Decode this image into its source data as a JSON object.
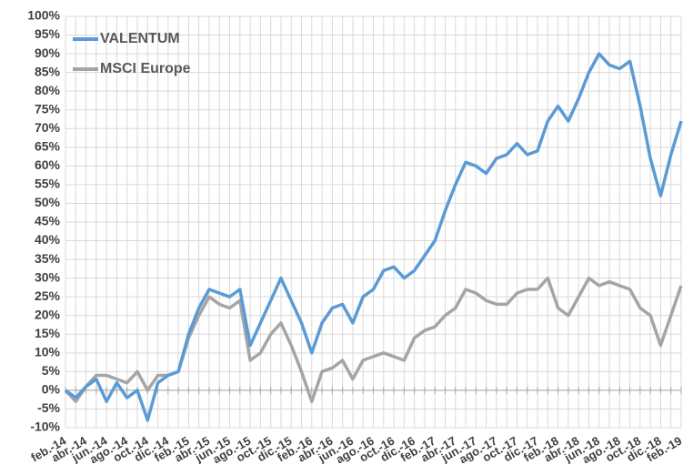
{
  "chart_data": {
    "type": "line",
    "categories": [
      "feb.-14",
      null,
      "abr.-14",
      null,
      "jun.-14",
      null,
      "ago.-14",
      null,
      "oct.-14",
      null,
      "dic.-14",
      null,
      "feb.-15",
      null,
      "abr.-15",
      null,
      "jun.-15",
      null,
      "ago.-15",
      null,
      "oct.-15",
      null,
      "dic.-15",
      null,
      "feb.-16",
      null,
      "abr.-16",
      null,
      "jun.-16",
      null,
      "ago.-16",
      null,
      "oct.-16",
      null,
      "dic.-16",
      null,
      "feb.-17",
      null,
      "abr.-17",
      null,
      "jun.-17",
      null,
      "ago.-17",
      null,
      "oct.-17",
      null,
      "dic.-17",
      null,
      "feb.-18",
      null,
      "abr.-18",
      null,
      "jun.-18",
      null,
      "ago.-18",
      null,
      "oct.-18",
      null,
      "dic.-18",
      null,
      "feb.-19"
    ],
    "series": [
      {
        "name": "VALENTUM",
        "color": "#5b9bd5",
        "values": [
          0,
          -2,
          1,
          3,
          -3,
          2,
          -2,
          0,
          -8,
          2,
          4,
          5,
          15,
          22,
          27,
          26,
          25,
          27,
          12,
          18,
          24,
          30,
          24,
          18,
          10,
          18,
          22,
          23,
          18,
          25,
          27,
          32,
          33,
          30,
          32,
          36,
          40,
          48,
          55,
          61,
          60,
          58,
          62,
          63,
          66,
          63,
          64,
          72,
          76,
          72,
          78,
          85,
          90,
          87,
          86,
          88,
          76,
          62,
          52,
          63,
          72
        ]
      },
      {
        "name": "MSCI Europe",
        "color": "#a5a5a5",
        "values": [
          0,
          -3,
          1,
          4,
          4,
          3,
          2,
          5,
          0,
          4,
          4,
          5,
          14,
          20,
          25,
          23,
          22,
          24,
          8,
          10,
          15,
          18,
          12,
          5,
          -3,
          5,
          6,
          8,
          3,
          8,
          9,
          10,
          9,
          8,
          14,
          16,
          17,
          20,
          22,
          27,
          26,
          24,
          23,
          23,
          26,
          27,
          27,
          30,
          22,
          20,
          25,
          30,
          28,
          29,
          28,
          27,
          22,
          20,
          12,
          20,
          28
        ]
      }
    ],
    "ylim": [
      -10,
      100
    ],
    "yticks": [
      {
        "value": -10,
        "label": "-10%"
      },
      {
        "value": -5,
        "label": "-5%"
      },
      {
        "value": 0,
        "label": "0%"
      },
      {
        "value": 5,
        "label": "5%"
      },
      {
        "value": 10,
        "label": "10%"
      },
      {
        "value": 15,
        "label": "15%"
      },
      {
        "value": 20,
        "label": "20%"
      },
      {
        "value": 25,
        "label": "25%"
      },
      {
        "value": 30,
        "label": "30%"
      },
      {
        "value": 35,
        "label": "35%"
      },
      {
        "value": 40,
        "label": "40%"
      },
      {
        "value": 45,
        "label": "45%"
      },
      {
        "value": 50,
        "label": "50%"
      },
      {
        "value": 55,
        "label": "55%"
      },
      {
        "value": 60,
        "label": "60%"
      },
      {
        "value": 65,
        "label": "65%"
      },
      {
        "value": 70,
        "label": "70%"
      },
      {
        "value": 75,
        "label": "75%"
      },
      {
        "value": 80,
        "label": "80%"
      },
      {
        "value": 85,
        "label": "85%"
      },
      {
        "value": 90,
        "label": "90%"
      },
      {
        "value": 95,
        "label": "95%"
      },
      {
        "value": 100,
        "label": "100%"
      }
    ],
    "grid": true,
    "legend": "upper left"
  }
}
